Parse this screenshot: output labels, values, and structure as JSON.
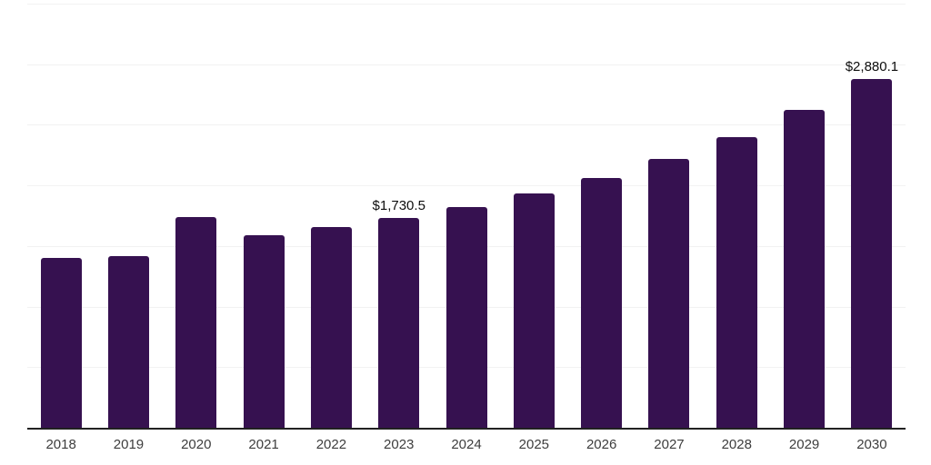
{
  "chart": {
    "title": "",
    "bar_color": "#361150",
    "axis_color": "#212121",
    "gridline_color": "#f2f2f2",
    "tick_label_color": "#3d3d3d",
    "data_label_color": "#0d0d0d",
    "background_color": "#ffffff"
  },
  "chart_data": {
    "type": "bar",
    "title": "",
    "xlabel": "",
    "ylabel": "",
    "categories": [
      "2018",
      "2019",
      "2020",
      "2021",
      "2022",
      "2023",
      "2024",
      "2025",
      "2026",
      "2027",
      "2028",
      "2029",
      "2030"
    ],
    "values": [
      1400,
      1415,
      1740,
      1590,
      1655,
      1730.5,
      1820,
      1935,
      2060,
      2215,
      2395,
      2620,
      2880.1
    ],
    "data_labels": {
      "2023": "$1,730.5",
      "2030": "$2,880.1"
    },
    "ylim": [
      0,
      3500
    ],
    "grid_step": 500,
    "grid": true,
    "y_axis_tick_labels_visible": false,
    "legend": "none"
  }
}
